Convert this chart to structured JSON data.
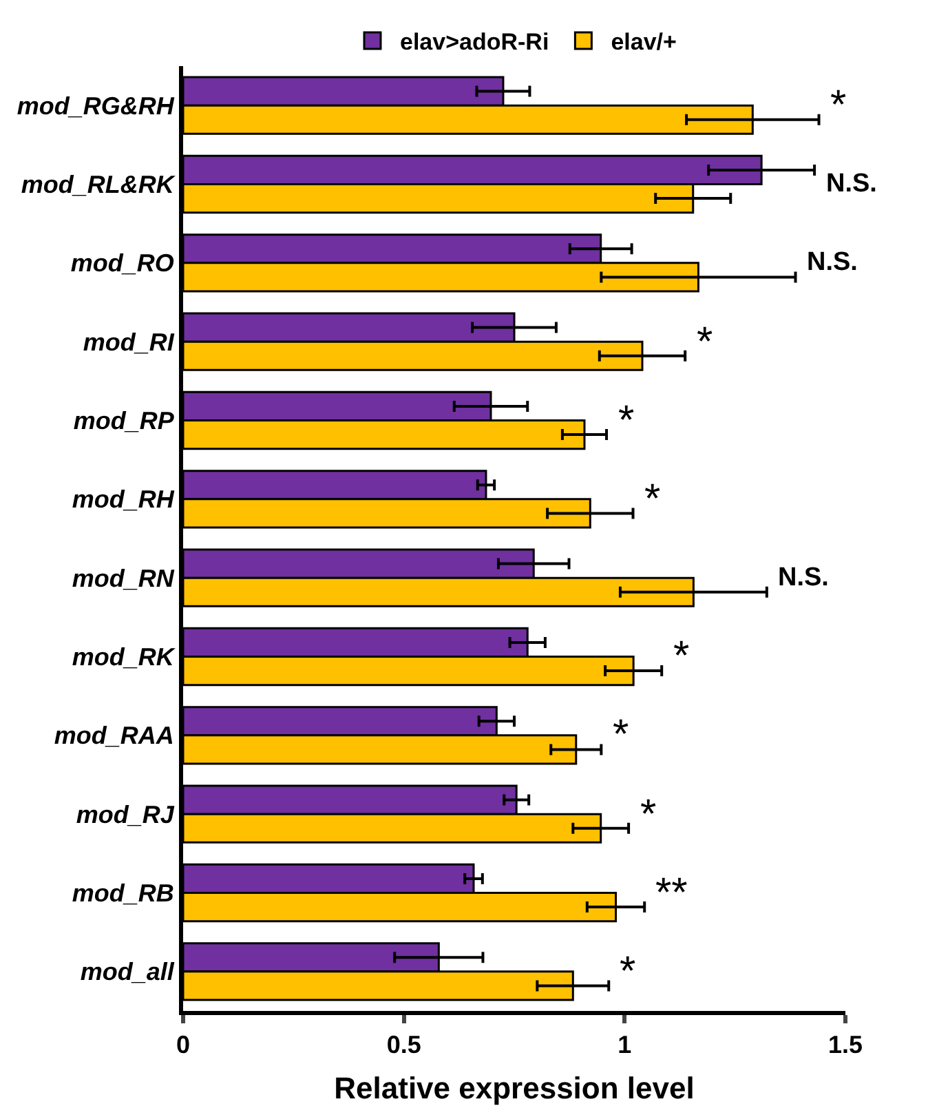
{
  "chart_data": {
    "type": "bar",
    "orientation": "horizontal",
    "xlabel": "Relative expression level",
    "categories": [
      "mod_RG&RH",
      "mod_RL&RK",
      "mod_RO",
      "mod_RI",
      "mod_RP",
      "mod_RH",
      "mod_RN",
      "mod_RK",
      "mod_RAA",
      "mod_RJ",
      "mod_RB",
      "mod_all"
    ],
    "series": [
      {
        "name": "elav>adoR-Ri",
        "color": "#7030a0",
        "values": [
          0.725,
          1.31,
          0.946,
          0.75,
          0.697,
          0.686,
          0.794,
          0.78,
          0.71,
          0.755,
          0.658,
          0.579
        ],
        "errors": [
          0.06,
          0.12,
          0.07,
          0.095,
          0.083,
          0.019,
          0.08,
          0.04,
          0.04,
          0.028,
          0.02,
          0.1
        ]
      },
      {
        "name": "elav/+",
        "color": "#ffc000",
        "values": [
          1.29,
          1.155,
          1.167,
          1.04,
          0.909,
          0.922,
          1.156,
          1.02,
          0.89,
          0.946,
          0.98,
          0.883
        ],
        "errors": [
          0.15,
          0.085,
          0.22,
          0.097,
          0.05,
          0.097,
          0.166,
          0.064,
          0.057,
          0.063,
          0.065,
          0.081
        ]
      }
    ],
    "xlim": [
      0,
      1.5
    ],
    "xticks": [
      0,
      0.5,
      1,
      1.5
    ],
    "legend": "top",
    "annotations": [
      "*",
      "N.S.",
      "N.S.",
      "*",
      "*",
      "*",
      "N.S.",
      "*",
      "*",
      "*",
      "**",
      "*"
    ]
  }
}
